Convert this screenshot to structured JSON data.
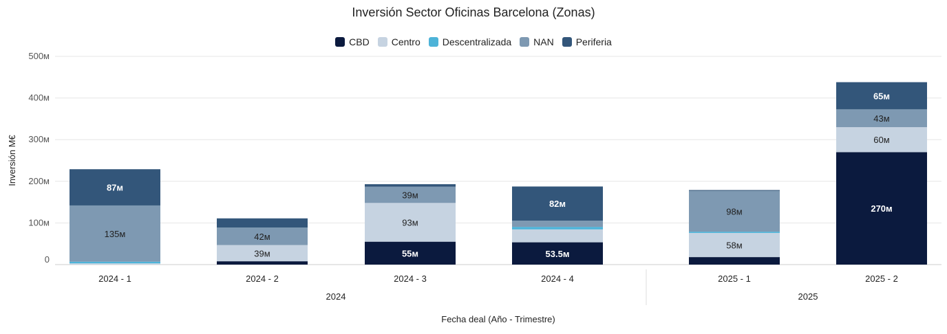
{
  "chart_data": {
    "type": "bar",
    "stacked": true,
    "title": "Inversión Sector Oficinas Barcelona (Zonas)",
    "xlabel": "Fecha deal (Año - Trimestre)",
    "ylabel": "Inversión M€",
    "ylim": [
      0,
      500
    ],
    "yticks": [
      "0",
      "100м",
      "200м",
      "300м",
      "400м",
      "500м"
    ],
    "yticks_values": [
      0,
      100,
      200,
      300,
      400,
      500
    ],
    "categories": [
      "2024 - 1",
      "2024 - 2",
      "2024 - 3",
      "2024 - 4",
      "2025 - 1",
      "2025 - 2"
    ],
    "groups": [
      {
        "label": "2024",
        "categories": [
          "2024 - 1",
          "2024 - 2",
          "2024 - 3",
          "2024 - 4"
        ]
      },
      {
        "label": "2025",
        "categories": [
          "2025 - 1",
          "2025 - 2"
        ]
      }
    ],
    "legend_position": "top-center",
    "grid": true,
    "series": [
      {
        "name": "CBD",
        "color": "#0b1a3e",
        "values": [
          0,
          8,
          55,
          53.5,
          18,
          270
        ],
        "labels": [
          "",
          "",
          "55м",
          "53.5м",
          "",
          "270м"
        ]
      },
      {
        "name": "Centro",
        "color": "#c6d3e1",
        "values": [
          3,
          39,
          93,
          31,
          58,
          60
        ],
        "labels": [
          "",
          "39м",
          "93м",
          "",
          "58м",
          "60м"
        ]
      },
      {
        "name": "Descentralizada",
        "color": "#4db3d8",
        "values": [
          4,
          0,
          0,
          6,
          3,
          0
        ],
        "labels": [
          "",
          "",
          "",
          "",
          "",
          ""
        ]
      },
      {
        "name": "NAN",
        "color": "#7e99b2",
        "values": [
          135,
          42,
          39,
          15,
          98,
          43
        ],
        "labels": [
          "135м",
          "42м",
          "39м",
          "",
          "98м",
          "43м"
        ]
      },
      {
        "name": "Periferia",
        "color": "#33567a",
        "values": [
          87,
          22,
          6,
          82,
          2,
          65
        ],
        "labels": [
          "87м",
          "",
          "",
          "82м",
          "",
          "65м"
        ]
      }
    ]
  }
}
